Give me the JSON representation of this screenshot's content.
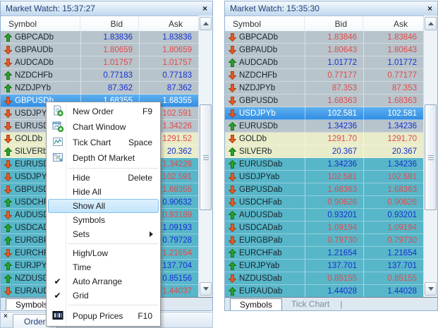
{
  "colors": {
    "value_blue": "#1530d2",
    "value_red": "#e04b4b",
    "row_gray": "#b8c4cb",
    "row_yellow": "#e9ecc8",
    "row_teal": "#58b6c9",
    "selected_row": "#3f9ae8",
    "title_text": "#1e3f74",
    "arrow_up": "#2aa12a",
    "arrow_down": "#e55a28"
  },
  "left_panel": {
    "title": "Market Watch: 15:37:27",
    "close_label": "×",
    "columns": [
      "Symbol",
      "Bid",
      "Ask"
    ],
    "rows": [
      {
        "symbol": "GBPCADb",
        "direction": "up",
        "bid": "1.83836",
        "ask": "1.83836",
        "value_color": "blue",
        "row_bg": "gray"
      },
      {
        "symbol": "GBPAUDb",
        "direction": "down",
        "bid": "1.80659",
        "ask": "1.80659",
        "value_color": "red",
        "row_bg": "gray"
      },
      {
        "symbol": "AUDCADb",
        "direction": "down",
        "bid": "1.01757",
        "ask": "1.01757",
        "value_color": "red",
        "row_bg": "gray"
      },
      {
        "symbol": "NZDCHFb",
        "direction": "up",
        "bid": "0.77183",
        "ask": "0.77183",
        "value_color": "blue",
        "row_bg": "gray"
      },
      {
        "symbol": "NZDJPYb",
        "direction": "up",
        "bid": "87.362",
        "ask": "87.362",
        "value_color": "blue",
        "row_bg": "gray"
      },
      {
        "symbol": "GBPUSDb",
        "direction": "down",
        "bid": "1.68355",
        "ask": "1.68355",
        "value_color": "white",
        "row_bg": "gray",
        "selected": true
      },
      {
        "symbol": "USDJPYb",
        "direction": "down",
        "bid": "102.591",
        "ask": "102.591",
        "value_color": "red",
        "row_bg": "gray"
      },
      {
        "symbol": "EURUSDb",
        "direction": "down",
        "bid": "1.34226",
        "ask": "1.34226",
        "value_color": "red",
        "row_bg": "gray"
      },
      {
        "symbol": "GOLDb",
        "direction": "down",
        "bid": "1291.52",
        "ask": "1291.52",
        "value_color": "red",
        "row_bg": "yellow"
      },
      {
        "symbol": "SILVERb",
        "direction": "up",
        "bid": "20.362",
        "ask": "20.362",
        "value_color": "blue",
        "row_bg": "yellow"
      },
      {
        "symbol": "EURUSDab",
        "direction": "down",
        "bid": "1.34226",
        "ask": "1.34226",
        "value_color": "red",
        "row_bg": "teal"
      },
      {
        "symbol": "USDJPYab",
        "direction": "down",
        "bid": "102.591",
        "ask": "102.591",
        "value_color": "red",
        "row_bg": "teal"
      },
      {
        "symbol": "GBPUSDab",
        "direction": "down",
        "bid": "1.68355",
        "ask": "1.68355",
        "value_color": "red",
        "row_bg": "teal"
      },
      {
        "symbol": "USDCHFab",
        "direction": "up",
        "bid": "0.90632",
        "ask": "0.90632",
        "value_color": "blue",
        "row_bg": "teal"
      },
      {
        "symbol": "AUDUSDab",
        "direction": "down",
        "bid": "0.93189",
        "ask": "0.93189",
        "value_color": "red",
        "row_bg": "teal"
      },
      {
        "symbol": "USDCADab",
        "direction": "up",
        "bid": "1.09193",
        "ask": "1.09193",
        "value_color": "blue",
        "row_bg": "teal"
      },
      {
        "symbol": "EURGBPab",
        "direction": "up",
        "bid": "0.79728",
        "ask": "0.79728",
        "value_color": "blue",
        "row_bg": "teal"
      },
      {
        "symbol": "EURCHFab",
        "direction": "down",
        "bid": "1.21654",
        "ask": "1.21654",
        "value_color": "red",
        "row_bg": "teal"
      },
      {
        "symbol": "EURJPYab",
        "direction": "up",
        "bid": "137.704",
        "ask": "137.704",
        "value_color": "blue",
        "row_bg": "teal"
      },
      {
        "symbol": "NZDUSDab",
        "direction": "up",
        "bid": "0.85156",
        "ask": "0.85156",
        "value_color": "blue",
        "row_bg": "teal"
      },
      {
        "symbol": "EURAUDab",
        "direction": "down",
        "bid": "1.44037",
        "ask": "1.44037",
        "value_color": "red",
        "row_bg": "teal"
      }
    ],
    "tabs": [
      {
        "label": "Symbols",
        "active": true
      }
    ]
  },
  "right_panel": {
    "title": "Market Watch: 15:35:30",
    "close_label": "×",
    "columns": [
      "Symbol",
      "Bid",
      "Ask"
    ],
    "rows": [
      {
        "symbol": "GBPCADb",
        "direction": "down",
        "bid": "1.83846",
        "ask": "1.83846",
        "value_color": "red",
        "row_bg": "gray"
      },
      {
        "symbol": "GBPAUDb",
        "direction": "down",
        "bid": "1.80643",
        "ask": "1.80643",
        "value_color": "red",
        "row_bg": "gray"
      },
      {
        "symbol": "AUDCADb",
        "direction": "up",
        "bid": "1.01772",
        "ask": "1.01772",
        "value_color": "blue",
        "row_bg": "gray"
      },
      {
        "symbol": "NZDCHFb",
        "direction": "down",
        "bid": "0.77177",
        "ask": "0.77177",
        "value_color": "red",
        "row_bg": "gray"
      },
      {
        "symbol": "NZDJPYb",
        "direction": "down",
        "bid": "87.353",
        "ask": "87.353",
        "value_color": "red",
        "row_bg": "gray"
      },
      {
        "symbol": "GBPUSDb",
        "direction": "down",
        "bid": "1.68363",
        "ask": "1.68363",
        "value_color": "red",
        "row_bg": "gray"
      },
      {
        "symbol": "USDJPYb",
        "direction": "down",
        "bid": "102.581",
        "ask": "102.581",
        "value_color": "white",
        "row_bg": "gray",
        "selected": true
      },
      {
        "symbol": "EURUSDb",
        "direction": "up",
        "bid": "1.34236",
        "ask": "1.34236",
        "value_color": "blue",
        "row_bg": "gray"
      },
      {
        "symbol": "GOLDb",
        "direction": "down",
        "bid": "1291.70",
        "ask": "1291.70",
        "value_color": "red",
        "row_bg": "yellow"
      },
      {
        "symbol": "SILVERb",
        "direction": "up",
        "bid": "20.367",
        "ask": "20.367",
        "value_color": "blue",
        "row_bg": "yellow"
      },
      {
        "symbol": "EURUSDab",
        "direction": "up",
        "bid": "1.34236",
        "ask": "1.34236",
        "value_color": "blue",
        "row_bg": "teal"
      },
      {
        "symbol": "USDJPYab",
        "direction": "down",
        "bid": "102.581",
        "ask": "102.581",
        "value_color": "red",
        "row_bg": "teal"
      },
      {
        "symbol": "GBPUSDab",
        "direction": "down",
        "bid": "1.68363",
        "ask": "1.68363",
        "value_color": "red",
        "row_bg": "teal"
      },
      {
        "symbol": "USDCHFab",
        "direction": "down",
        "bid": "0.90626",
        "ask": "0.90626",
        "value_color": "red",
        "row_bg": "teal"
      },
      {
        "symbol": "AUDUSDab",
        "direction": "up",
        "bid": "0.93201",
        "ask": "0.93201",
        "value_color": "blue",
        "row_bg": "teal"
      },
      {
        "symbol": "USDCADab",
        "direction": "down",
        "bid": "1.09194",
        "ask": "1.09194",
        "value_color": "red",
        "row_bg": "teal"
      },
      {
        "symbol": "EURGBPab",
        "direction": "down",
        "bid": "0.79730",
        "ask": "0.79730",
        "value_color": "red",
        "row_bg": "teal"
      },
      {
        "symbol": "EURCHFab",
        "direction": "up",
        "bid": "1.21654",
        "ask": "1.21654",
        "value_color": "blue",
        "row_bg": "teal"
      },
      {
        "symbol": "EURJPYab",
        "direction": "up",
        "bid": "137.701",
        "ask": "137.701",
        "value_color": "blue",
        "row_bg": "teal"
      },
      {
        "symbol": "NZDUSDab",
        "direction": "down",
        "bid": "0.85155",
        "ask": "0.85155",
        "value_color": "red",
        "row_bg": "teal"
      },
      {
        "symbol": "EURAUDab",
        "direction": "up",
        "bid": "1.44028",
        "ask": "1.44028",
        "value_color": "blue",
        "row_bg": "teal"
      }
    ],
    "tabs": [
      {
        "label": "Symbols",
        "active": true
      },
      {
        "label": "Tick Chart",
        "active": false
      }
    ],
    "tab_divider": "|"
  },
  "context_menu": {
    "items": [
      {
        "label": "New Order",
        "shortcut": "F9",
        "icon": "new-order-icon",
        "tall": true
      },
      {
        "label": "Chart Window",
        "icon": "chart-window-icon",
        "tall": true
      },
      {
        "label": "Tick Chart",
        "shortcut": "Space",
        "icon": "tick-chart-icon",
        "tall": true
      },
      {
        "label": "Depth Of Market",
        "icon": "depth-of-market-icon",
        "tall": true
      },
      {
        "separator": true
      },
      {
        "label": "Hide",
        "shortcut": "Delete"
      },
      {
        "label": "Hide All"
      },
      {
        "label": "Show All",
        "highlighted": true
      },
      {
        "label": "Symbols"
      },
      {
        "label": "Sets",
        "submenu": true
      },
      {
        "separator": true
      },
      {
        "label": "High/Low"
      },
      {
        "label": "Time"
      },
      {
        "label": "Auto Arrange",
        "checked": true
      },
      {
        "label": "Grid",
        "checked": true
      },
      {
        "separator": true
      },
      {
        "label": "Popup Prices",
        "shortcut": "F10",
        "icon": "popup-prices-icon",
        "xtall": true
      }
    ]
  },
  "order_bar": {
    "close_label": "×",
    "label": "Order"
  }
}
